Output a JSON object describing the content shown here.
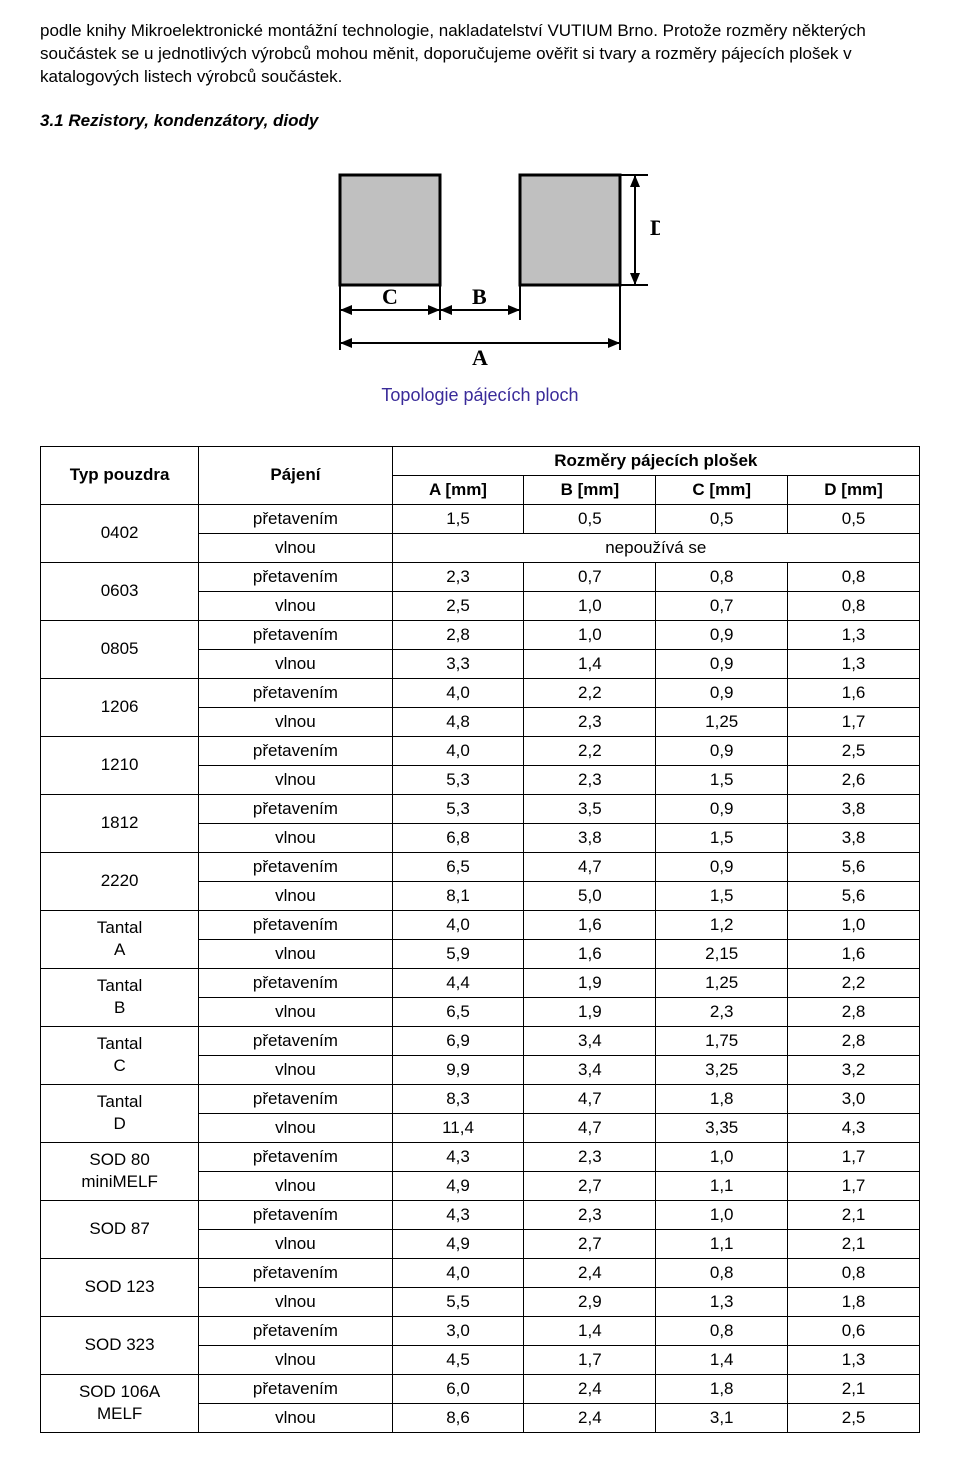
{
  "intro_text": "podle knihy Mikroelektronické montážní technologie, nakladatelství VUTIUM Brno. Protože rozměry některých součástek se u jednotlivých výrobců mohou měnit, doporučujeme ověřit si tvary a rozměry pájecích plošek v katalogových listech výrobců součástek.",
  "section_title": "3.1 Rezistory, kondenzátory, diody",
  "figure": {
    "caption": "Topologie pájecích ploch",
    "label_A": "A",
    "label_B": "B",
    "label_C": "C",
    "label_D": "D",
    "pad_fill": "#c0c0c0",
    "stroke": "#000000",
    "bg": "#ffffff"
  },
  "table": {
    "header": {
      "type": "Typ pouzdra",
      "soldering": "Pájení",
      "dims_title": "Rozměry pájecích plošek",
      "A": "A [mm]",
      "B": "B [mm]",
      "C": "C [mm]",
      "D": "D [mm]"
    },
    "nepouziva": "nepoužívá se",
    "reflow": "přetavením",
    "wave": "vlnou",
    "rows": [
      {
        "type": "0402",
        "reflow": [
          "1,5",
          "0,5",
          "0,5",
          "0,5"
        ],
        "wave_special": true
      },
      {
        "type": "0603",
        "reflow": [
          "2,3",
          "0,7",
          "0,8",
          "0,8"
        ],
        "wave": [
          "2,5",
          "1,0",
          "0,7",
          "0,8"
        ]
      },
      {
        "type": "0805",
        "reflow": [
          "2,8",
          "1,0",
          "0,9",
          "1,3"
        ],
        "wave": [
          "3,3",
          "1,4",
          "0,9",
          "1,3"
        ]
      },
      {
        "type": "1206",
        "reflow": [
          "4,0",
          "2,2",
          "0,9",
          "1,6"
        ],
        "wave": [
          "4,8",
          "2,3",
          "1,25",
          "1,7"
        ]
      },
      {
        "type": "1210",
        "reflow": [
          "4,0",
          "2,2",
          "0,9",
          "2,5"
        ],
        "wave": [
          "5,3",
          "2,3",
          "1,5",
          "2,6"
        ]
      },
      {
        "type": "1812",
        "reflow": [
          "5,3",
          "3,5",
          "0,9",
          "3,8"
        ],
        "wave": [
          "6,8",
          "3,8",
          "1,5",
          "3,8"
        ]
      },
      {
        "type": "2220",
        "reflow": [
          "6,5",
          "4,7",
          "0,9",
          "5,6"
        ],
        "wave": [
          "8,1",
          "5,0",
          "1,5",
          "5,6"
        ]
      },
      {
        "type": "Tantal\nA",
        "reflow": [
          "4,0",
          "1,6",
          "1,2",
          "1,0"
        ],
        "wave": [
          "5,9",
          "1,6",
          "2,15",
          "1,6"
        ]
      },
      {
        "type": "Tantal\nB",
        "reflow": [
          "4,4",
          "1,9",
          "1,25",
          "2,2"
        ],
        "wave": [
          "6,5",
          "1,9",
          "2,3",
          "2,8"
        ]
      },
      {
        "type": "Tantal\nC",
        "reflow": [
          "6,9",
          "3,4",
          "1,75",
          "2,8"
        ],
        "wave": [
          "9,9",
          "3,4",
          "3,25",
          "3,2"
        ]
      },
      {
        "type": "Tantal\nD",
        "reflow": [
          "8,3",
          "4,7",
          "1,8",
          "3,0"
        ],
        "wave": [
          "11,4",
          "4,7",
          "3,35",
          "4,3"
        ]
      },
      {
        "type": "SOD 80\nminiMELF",
        "reflow": [
          "4,3",
          "2,3",
          "1,0",
          "1,7"
        ],
        "wave": [
          "4,9",
          "2,7",
          "1,1",
          "1,7"
        ]
      },
      {
        "type": "SOD 87",
        "reflow": [
          "4,3",
          "2,3",
          "1,0",
          "2,1"
        ],
        "wave": [
          "4,9",
          "2,7",
          "1,1",
          "2,1"
        ]
      },
      {
        "type": "SOD 123",
        "reflow": [
          "4,0",
          "2,4",
          "0,8",
          "0,8"
        ],
        "wave": [
          "5,5",
          "2,9",
          "1,3",
          "1,8"
        ]
      },
      {
        "type": "SOD 323",
        "reflow": [
          "3,0",
          "1,4",
          "0,8",
          "0,6"
        ],
        "wave": [
          "4,5",
          "1,7",
          "1,4",
          "1,3"
        ]
      },
      {
        "type": "SOD 106A\nMELF",
        "reflow": [
          "6,0",
          "2,4",
          "1,8",
          "2,1"
        ],
        "wave": [
          "8,6",
          "2,4",
          "3,1",
          "2,5"
        ]
      }
    ]
  }
}
